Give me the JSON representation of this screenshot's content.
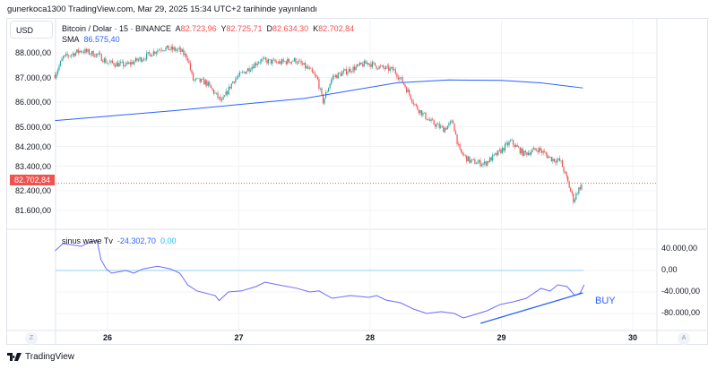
{
  "header": {
    "published": "gunerkoca1300 TradingView.com, Mar 29, 2025 15:34 UTC+2 tarihinde yayınlandı"
  },
  "symbol": {
    "title": "Bitcoin / Dolar · 15 · BINANCE",
    "o_label": "A",
    "o": "82.723,96",
    "h_label": "Y",
    "h": "82.725,71",
    "l_label": "D",
    "l": "82.634,30",
    "c_label": "K",
    "c": "82.702,84",
    "sma_label": "SMA",
    "sma_value": "86.575,40"
  },
  "currency": "USD",
  "last_price_label": "82.702,84",
  "indicator": {
    "name": "sinus wave Tv",
    "value1": "-24.302,70",
    "value2": "0,00"
  },
  "buy_label": "BUY",
  "scale_buttons": {
    "left": "Z",
    "right": "A"
  },
  "brand": "TradingView",
  "colors": {
    "up": "#26a69a",
    "down": "#ef5350",
    "sma": "#2962ff",
    "osc": "#6b6bff",
    "zero": "#b3e0f7",
    "trend": "#2962ff"
  },
  "chart_data": [
    {
      "type": "candlestick",
      "title": "Bitcoin / Dolar · 15 · BINANCE",
      "ylabel": "USD",
      "yticks": [
        "88.000,00",
        "87.000,00",
        "86.000,00",
        "85.000,00",
        "84.200,00",
        "83.400,00",
        "82.400,00",
        "81.600,00"
      ],
      "ytick_values": [
        88000,
        87000,
        86000,
        85000,
        84200,
        83400,
        82400,
        81600
      ],
      "xticks": [
        "26",
        "27",
        "28",
        "29",
        "30"
      ],
      "xtick_values": [
        26,
        27,
        28,
        29,
        30
      ],
      "close_path": [
        [
          25.6,
          87100
        ],
        [
          25.66,
          87800
        ],
        [
          25.8,
          88100
        ],
        [
          25.93,
          87900
        ],
        [
          26.0,
          87600
        ],
        [
          26.14,
          87500
        ],
        [
          26.27,
          87800
        ],
        [
          26.41,
          88200
        ],
        [
          26.55,
          88100
        ],
        [
          26.61,
          87800
        ],
        [
          26.65,
          86900
        ],
        [
          26.75,
          86800
        ],
        [
          26.87,
          86000
        ],
        [
          26.96,
          86900
        ],
        [
          27.06,
          87300
        ],
        [
          27.16,
          87700
        ],
        [
          27.3,
          87600
        ],
        [
          27.43,
          87700
        ],
        [
          27.54,
          87300
        ],
        [
          27.6,
          86900
        ],
        [
          27.64,
          86000
        ],
        [
          27.71,
          87000
        ],
        [
          27.84,
          87300
        ],
        [
          27.98,
          87600
        ],
        [
          28.08,
          87400
        ],
        [
          28.18,
          87300
        ],
        [
          28.25,
          86800
        ],
        [
          28.35,
          85800
        ],
        [
          28.46,
          85200
        ],
        [
          28.56,
          84900
        ],
        [
          28.63,
          85200
        ],
        [
          28.68,
          84000
        ],
        [
          28.76,
          83600
        ],
        [
          28.87,
          83500
        ],
        [
          28.97,
          83900
        ],
        [
          29.07,
          84400
        ],
        [
          29.17,
          83900
        ],
        [
          29.28,
          84100
        ],
        [
          29.38,
          83700
        ],
        [
          29.45,
          83600
        ],
        [
          29.49,
          83000
        ],
        [
          29.55,
          82000
        ],
        [
          29.58,
          82400
        ],
        [
          29.62,
          82703
        ]
      ],
      "sma": [
        [
          25.6,
          85250
        ],
        [
          26.5,
          85650
        ],
        [
          27.5,
          86150
        ],
        [
          28.2,
          86780
        ],
        [
          28.6,
          86900
        ],
        [
          29.0,
          86880
        ],
        [
          29.3,
          86780
        ],
        [
          29.62,
          86575
        ]
      ],
      "last_price": 82702.84
    },
    {
      "type": "line",
      "title": "sinus wave Tv",
      "yticks": [
        "40.000,00",
        "0,00",
        "-40.000,00",
        "-80.000,00"
      ],
      "ytick_values": [
        40000,
        0,
        -40000,
        -80000
      ],
      "zero_line": 0,
      "series": [
        [
          25.6,
          36700
        ],
        [
          25.66,
          50000
        ],
        [
          25.8,
          45000
        ],
        [
          25.87,
          53000
        ],
        [
          25.92,
          56000
        ],
        [
          25.95,
          20000
        ],
        [
          25.99,
          3000
        ],
        [
          26.03,
          -5000
        ],
        [
          26.14,
          0
        ],
        [
          26.2,
          -5000
        ],
        [
          26.27,
          3000
        ],
        [
          26.38,
          8000
        ],
        [
          26.48,
          3000
        ],
        [
          26.55,
          -5000
        ],
        [
          26.61,
          -26700
        ],
        [
          26.68,
          -38000
        ],
        [
          26.82,
          -46700
        ],
        [
          26.85,
          -56000
        ],
        [
          26.92,
          -40000
        ],
        [
          27.02,
          -38000
        ],
        [
          27.13,
          -30000
        ],
        [
          27.2,
          -21700
        ],
        [
          27.3,
          -26700
        ],
        [
          27.44,
          -33000
        ],
        [
          27.54,
          -40000
        ],
        [
          27.61,
          -38000
        ],
        [
          27.71,
          -51700
        ],
        [
          27.85,
          -46700
        ],
        [
          27.99,
          -50000
        ],
        [
          28.05,
          -46700
        ],
        [
          28.12,
          -55000
        ],
        [
          28.23,
          -60000
        ],
        [
          28.33,
          -71700
        ],
        [
          28.43,
          -80000
        ],
        [
          28.54,
          -76700
        ],
        [
          28.64,
          -80000
        ],
        [
          28.71,
          -88300
        ],
        [
          28.78,
          -83300
        ],
        [
          28.89,
          -75000
        ],
        [
          28.99,
          -63300
        ],
        [
          29.09,
          -58300
        ],
        [
          29.19,
          -51700
        ],
        [
          29.3,
          -33300
        ],
        [
          29.37,
          -38300
        ],
        [
          29.43,
          -26700
        ],
        [
          29.5,
          -30000
        ],
        [
          29.56,
          -46700
        ],
        [
          29.6,
          -41700
        ],
        [
          29.63,
          -26700
        ]
      ],
      "trendline": [
        [
          28.84,
          -98300
        ],
        [
          29.62,
          -41700
        ]
      ]
    }
  ]
}
